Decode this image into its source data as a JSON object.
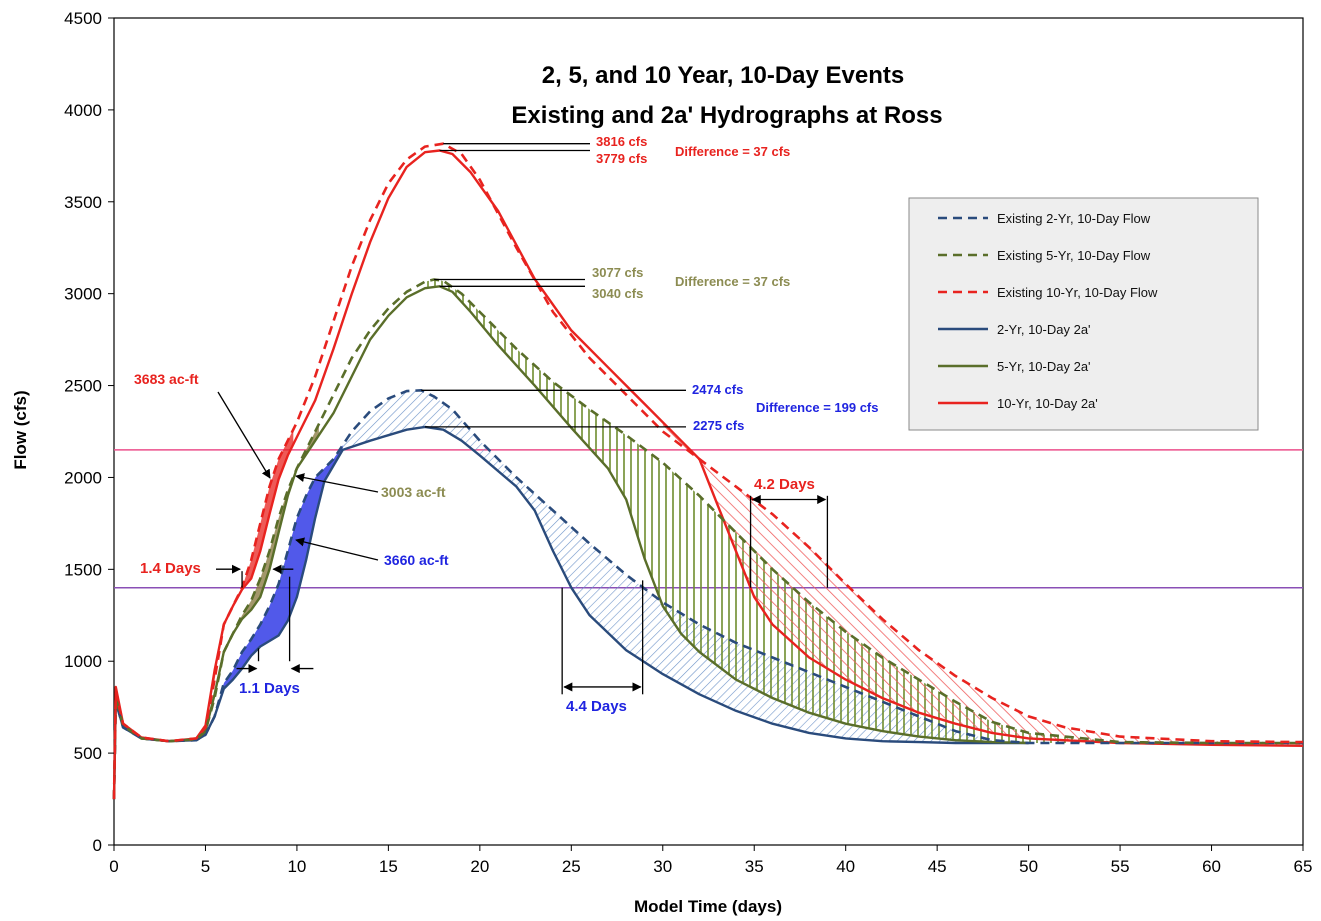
{
  "chart_data": {
    "type": "line",
    "title": [
      "2, 5, and 10 Year, 10-Day Events",
      "Existing and 2a' Hydrographs at Ross"
    ],
    "xlabel": "Model Time (days)",
    "ylabel": "Flow (cfs)",
    "xlim": [
      0,
      65
    ],
    "ylim": [
      0,
      4500
    ],
    "xticks": [
      0,
      5,
      10,
      15,
      20,
      25,
      30,
      35,
      40,
      45,
      50,
      55,
      60,
      65
    ],
    "yticks": [
      0,
      500,
      1000,
      1500,
      2000,
      2500,
      3000,
      3500,
      4000,
      4500
    ],
    "legend_position": "upper-right",
    "colors": {
      "blue": "#2a4b7c",
      "olive": "#5a6e2a",
      "red": "#e8231f",
      "blue_text": "#1f24e0",
      "olive_text": "#8c8c52",
      "pink_line": "#ec4f8b",
      "purple_line": "#8a4fb6"
    },
    "reference_lines": [
      {
        "y": 2150,
        "color": "#ec4f8b"
      },
      {
        "y": 1400,
        "color": "#8a4fb6"
      }
    ],
    "series": [
      {
        "name": "Existing 2-Yr, 10-Day Flow",
        "style": "dashed",
        "color": "#2a4b7c",
        "points": [
          [
            0,
            250
          ],
          [
            0.1,
            780
          ],
          [
            0.5,
            640
          ],
          [
            1.5,
            580
          ],
          [
            3,
            565
          ],
          [
            4.5,
            570
          ],
          [
            5,
            600
          ],
          [
            5.5,
            700
          ],
          [
            6,
            880
          ],
          [
            6.5,
            950
          ],
          [
            7,
            1050
          ],
          [
            7.5,
            1120
          ],
          [
            8,
            1200
          ],
          [
            8.5,
            1300
          ],
          [
            9,
            1420
          ],
          [
            9.5,
            1600
          ],
          [
            10,
            1780
          ],
          [
            10.5,
            1900
          ],
          [
            11,
            2000
          ],
          [
            12,
            2100
          ],
          [
            13,
            2250
          ],
          [
            14,
            2360
          ],
          [
            15,
            2430
          ],
          [
            16,
            2470
          ],
          [
            16.8,
            2474
          ],
          [
            17.5,
            2440
          ],
          [
            18.5,
            2370
          ],
          [
            20,
            2200
          ],
          [
            22,
            2000
          ],
          [
            24,
            1820
          ],
          [
            26,
            1640
          ],
          [
            28,
            1470
          ],
          [
            30,
            1320
          ],
          [
            32,
            1200
          ],
          [
            34,
            1100
          ],
          [
            36,
            1020
          ],
          [
            38,
            940
          ],
          [
            40,
            860
          ],
          [
            42,
            780
          ],
          [
            44,
            700
          ],
          [
            46,
            620
          ],
          [
            48,
            570
          ],
          [
            50,
            555
          ],
          [
            55,
            555
          ],
          [
            60,
            555
          ],
          [
            65,
            555
          ]
        ]
      },
      {
        "name": "Existing 5-Yr, 10-Day Flow",
        "style": "dashed",
        "color": "#5a6e2a",
        "points": [
          [
            0,
            250
          ],
          [
            0.1,
            800
          ],
          [
            0.5,
            650
          ],
          [
            1.5,
            580
          ],
          [
            3,
            565
          ],
          [
            4.5,
            575
          ],
          [
            5,
            620
          ],
          [
            5.5,
            800
          ],
          [
            6,
            1050
          ],
          [
            6.5,
            1150
          ],
          [
            7,
            1250
          ],
          [
            7.5,
            1330
          ],
          [
            8,
            1450
          ],
          [
            8.5,
            1600
          ],
          [
            9,
            1780
          ],
          [
            9.5,
            1930
          ],
          [
            10,
            2050
          ],
          [
            11,
            2250
          ],
          [
            12,
            2450
          ],
          [
            13,
            2650
          ],
          [
            14,
            2800
          ],
          [
            15,
            2920
          ],
          [
            16,
            3010
          ],
          [
            17,
            3065
          ],
          [
            17.5,
            3077
          ],
          [
            18,
            3070
          ],
          [
            19,
            3000
          ],
          [
            20,
            2900
          ],
          [
            22,
            2700
          ],
          [
            24,
            2520
          ],
          [
            26,
            2370
          ],
          [
            28,
            2230
          ],
          [
            30,
            2080
          ],
          [
            32,
            1900
          ],
          [
            34,
            1700
          ],
          [
            36,
            1500
          ],
          [
            38,
            1320
          ],
          [
            40,
            1160
          ],
          [
            42,
            1020
          ],
          [
            44,
            900
          ],
          [
            46,
            780
          ],
          [
            48,
            670
          ],
          [
            50,
            610
          ],
          [
            55,
            560
          ],
          [
            60,
            555
          ],
          [
            65,
            555
          ]
        ]
      },
      {
        "name": "Existing 10-Yr, 10-Day Flow",
        "style": "dashed",
        "color": "#e8231f",
        "points": [
          [
            0,
            250
          ],
          [
            0.1,
            830
          ],
          [
            0.5,
            660
          ],
          [
            1.5,
            585
          ],
          [
            3,
            565
          ],
          [
            4.5,
            580
          ],
          [
            5,
            640
          ],
          [
            5.5,
            900
          ],
          [
            6,
            1200
          ],
          [
            6.5,
            1300
          ],
          [
            7,
            1400
          ],
          [
            7.5,
            1550
          ],
          [
            8,
            1750
          ],
          [
            8.5,
            1950
          ],
          [
            9,
            2100
          ],
          [
            10,
            2300
          ],
          [
            11,
            2550
          ],
          [
            12,
            2850
          ],
          [
            13,
            3150
          ],
          [
            14,
            3400
          ],
          [
            15,
            3600
          ],
          [
            16,
            3730
          ],
          [
            17,
            3800
          ],
          [
            18,
            3816
          ],
          [
            19,
            3760
          ],
          [
            20,
            3620
          ],
          [
            22,
            3250
          ],
          [
            24,
            2900
          ],
          [
            26,
            2650
          ],
          [
            28,
            2450
          ],
          [
            30,
            2250
          ],
          [
            32,
            2100
          ],
          [
            34,
            1950
          ],
          [
            36,
            1800
          ],
          [
            38,
            1620
          ],
          [
            40,
            1420
          ],
          [
            42,
            1230
          ],
          [
            44,
            1060
          ],
          [
            46,
            920
          ],
          [
            48,
            800
          ],
          [
            50,
            700
          ],
          [
            52,
            640
          ],
          [
            55,
            590
          ],
          [
            60,
            565
          ],
          [
            65,
            560
          ]
        ]
      },
      {
        "name": "2-Yr, 10-Day 2a'",
        "style": "solid",
        "color": "#2a4b7c",
        "points": [
          [
            0,
            250
          ],
          [
            0.1,
            780
          ],
          [
            0.5,
            640
          ],
          [
            1.5,
            580
          ],
          [
            3,
            565
          ],
          [
            4.5,
            570
          ],
          [
            5,
            600
          ],
          [
            5.5,
            700
          ],
          [
            6,
            850
          ],
          [
            6.5,
            900
          ],
          [
            7,
            960
          ],
          [
            7.5,
            1030
          ],
          [
            8,
            1080
          ],
          [
            8.5,
            1110
          ],
          [
            9,
            1140
          ],
          [
            9.5,
            1220
          ],
          [
            10,
            1350
          ],
          [
            10.5,
            1550
          ],
          [
            11,
            1780
          ],
          [
            11.5,
            1980
          ],
          [
            12.5,
            2150
          ],
          [
            14,
            2200
          ],
          [
            15,
            2230
          ],
          [
            16,
            2260
          ],
          [
            17,
            2275
          ],
          [
            18,
            2260
          ],
          [
            19,
            2200
          ],
          [
            20,
            2120
          ],
          [
            22,
            1950
          ],
          [
            23,
            1820
          ],
          [
            24,
            1600
          ],
          [
            25,
            1400
          ],
          [
            26,
            1250
          ],
          [
            28,
            1060
          ],
          [
            30,
            930
          ],
          [
            32,
            820
          ],
          [
            34,
            730
          ],
          [
            36,
            660
          ],
          [
            38,
            610
          ],
          [
            40,
            580
          ],
          [
            42,
            565
          ],
          [
            44,
            560
          ],
          [
            46,
            555
          ],
          [
            48,
            555
          ],
          [
            50,
            555
          ]
        ]
      },
      {
        "name": "5-Yr, 10-Day 2a'",
        "style": "solid",
        "color": "#5a6e2a",
        "points": [
          [
            0,
            250
          ],
          [
            0.1,
            800
          ],
          [
            0.5,
            650
          ],
          [
            1.5,
            580
          ],
          [
            3,
            565
          ],
          [
            4.5,
            575
          ],
          [
            5,
            620
          ],
          [
            5.5,
            820
          ],
          [
            6,
            1050
          ],
          [
            6.5,
            1150
          ],
          [
            7,
            1230
          ],
          [
            7.5,
            1280
          ],
          [
            8,
            1350
          ],
          [
            8.5,
            1500
          ],
          [
            9,
            1700
          ],
          [
            9.5,
            1900
          ],
          [
            10,
            2050
          ],
          [
            11,
            2200
          ],
          [
            12,
            2350
          ],
          [
            13,
            2550
          ],
          [
            14,
            2750
          ],
          [
            15,
            2880
          ],
          [
            16,
            2980
          ],
          [
            17,
            3030
          ],
          [
            17.8,
            3040
          ],
          [
            18.5,
            3010
          ],
          [
            19.5,
            2900
          ],
          [
            21,
            2720
          ],
          [
            23,
            2500
          ],
          [
            25,
            2270
          ],
          [
            27,
            2050
          ],
          [
            28,
            1880
          ],
          [
            29,
            1560
          ],
          [
            30,
            1300
          ],
          [
            31,
            1150
          ],
          [
            32,
            1050
          ],
          [
            34,
            900
          ],
          [
            36,
            800
          ],
          [
            38,
            720
          ],
          [
            40,
            660
          ],
          [
            42,
            620
          ],
          [
            44,
            590
          ],
          [
            46,
            570
          ],
          [
            48,
            560
          ],
          [
            50,
            555
          ]
        ]
      },
      {
        "name": "10-Yr, 10-Day 2a'",
        "style": "solid",
        "color": "#e8231f",
        "points": [
          [
            0,
            250
          ],
          [
            0.1,
            860
          ],
          [
            0.5,
            660
          ],
          [
            1.5,
            585
          ],
          [
            3,
            565
          ],
          [
            4.5,
            580
          ],
          [
            5,
            650
          ],
          [
            5.5,
            950
          ],
          [
            6,
            1200
          ],
          [
            6.5,
            1300
          ],
          [
            7,
            1390
          ],
          [
            7.5,
            1450
          ],
          [
            8,
            1600
          ],
          [
            8.5,
            1800
          ],
          [
            9,
            1990
          ],
          [
            9.5,
            2120
          ],
          [
            10,
            2220
          ],
          [
            11,
            2420
          ],
          [
            12,
            2700
          ],
          [
            13,
            3000
          ],
          [
            14,
            3280
          ],
          [
            15,
            3520
          ],
          [
            16,
            3690
          ],
          [
            17,
            3770
          ],
          [
            17.8,
            3779
          ],
          [
            18.5,
            3760
          ],
          [
            19.5,
            3660
          ],
          [
            21,
            3450
          ],
          [
            23,
            3080
          ],
          [
            25,
            2800
          ],
          [
            27,
            2600
          ],
          [
            29,
            2400
          ],
          [
            31,
            2200
          ],
          [
            32,
            2100
          ],
          [
            33,
            1850
          ],
          [
            34,
            1600
          ],
          [
            35,
            1350
          ],
          [
            36,
            1200
          ],
          [
            38,
            1020
          ],
          [
            40,
            900
          ],
          [
            42,
            800
          ],
          [
            44,
            720
          ],
          [
            46,
            660
          ],
          [
            48,
            610
          ],
          [
            50,
            580
          ],
          [
            55,
            555
          ],
          [
            60,
            545
          ],
          [
            65,
            540
          ]
        ]
      }
    ],
    "annotations": [
      {
        "text": "3816 cfs",
        "color": "#e8231f"
      },
      {
        "text": "3779 cfs",
        "color": "#e8231f"
      },
      {
        "text": "Difference = 37 cfs",
        "color": "#e8231f"
      },
      {
        "text": "3077 cfs",
        "color": "#8c8c52"
      },
      {
        "text": "3040 cfs",
        "color": "#8c8c52"
      },
      {
        "text": "Difference = 37 cfs",
        "color": "#8c8c52"
      },
      {
        "text": "2474 cfs",
        "color": "#1f24e0"
      },
      {
        "text": "2275 cfs",
        "color": "#1f24e0"
      },
      {
        "text": "Difference = 199 cfs",
        "color": "#1f24e0"
      },
      {
        "text": "3683 ac-ft",
        "color": "#e8231f"
      },
      {
        "text": "3003 ac-ft",
        "color": "#8c8c52"
      },
      {
        "text": "3660 ac-ft",
        "color": "#1f24e0"
      },
      {
        "text": "1.4 Days",
        "color": "#e8231f"
      },
      {
        "text": "1.1 Days",
        "color": "#1f24e0"
      },
      {
        "text": "4.4 Days",
        "color": "#1f24e0"
      },
      {
        "text": "4.2 Days",
        "color": "#e8231f"
      }
    ]
  }
}
